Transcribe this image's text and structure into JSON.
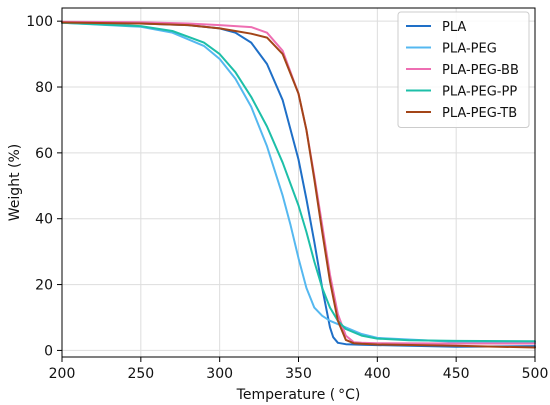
{
  "chart_data": {
    "type": "line",
    "title": "",
    "xlabel": "Temperature ( °C)",
    "ylabel": "Weight (%)",
    "xlim": [
      200,
      500
    ],
    "ylim": [
      -2,
      104
    ],
    "xticks": [
      200,
      250,
      300,
      350,
      400,
      450,
      500
    ],
    "yticks": [
      0,
      20,
      40,
      60,
      80,
      100
    ],
    "grid": true,
    "legend_position": "top-right",
    "series": [
      {
        "name": "PLA",
        "color": "#1f6fc7",
        "x": [
          200,
          250,
          280,
          300,
          310,
          320,
          330,
          340,
          350,
          355,
          360,
          365,
          370,
          372,
          375,
          380,
          390,
          400,
          450,
          500
        ],
        "y": [
          99.5,
          99.3,
          98.8,
          97.8,
          96.5,
          93.5,
          87,
          76,
          58,
          46,
          33,
          19,
          7,
          4,
          2.3,
          1.9,
          1.7,
          1.6,
          1.1,
          1.3
        ]
      },
      {
        "name": "PLA-PEG",
        "color": "#55b8f0",
        "x": [
          200,
          250,
          270,
          290,
          300,
          310,
          320,
          330,
          340,
          345,
          350,
          355,
          360,
          365,
          370,
          380,
          390,
          400,
          450,
          500
        ],
        "y": [
          99.5,
          98.3,
          96.5,
          92.5,
          88.5,
          82.5,
          74,
          62,
          47,
          38,
          28,
          19,
          13,
          10.5,
          9,
          7,
          5,
          3.8,
          2.6,
          2.4
        ]
      },
      {
        "name": "PLA-PEG-BB",
        "color": "#ee6eb2",
        "x": [
          200,
          250,
          280,
          300,
          320,
          330,
          340,
          350,
          355,
          360,
          365,
          370,
          375,
          380,
          385,
          390,
          400,
          450,
          500
        ],
        "y": [
          99.8,
          99.7,
          99.3,
          98.8,
          98.2,
          96.5,
          91,
          78,
          67,
          53,
          38,
          23,
          11,
          4.5,
          2.5,
          2.3,
          2.2,
          2.1,
          2.1
        ]
      },
      {
        "name": "PLA-PEG-PP",
        "color": "#1dbfa8",
        "x": [
          200,
          250,
          270,
          290,
          300,
          310,
          320,
          330,
          340,
          350,
          355,
          360,
          365,
          370,
          375,
          380,
          390,
          400,
          420,
          450,
          500
        ],
        "y": [
          99.5,
          98.5,
          97,
          93.5,
          90,
          84.5,
          77,
          68,
          57,
          44,
          36,
          27,
          19,
          13,
          9,
          6.5,
          4.5,
          3.6,
          3.1,
          2.9,
          2.8
        ]
      },
      {
        "name": "PLA-PEG-TB",
        "color": "#a34518",
        "x": [
          200,
          250,
          280,
          300,
          310,
          320,
          330,
          340,
          350,
          355,
          360,
          365,
          370,
          375,
          380,
          385,
          390,
          400,
          450,
          500
        ],
        "y": [
          99.6,
          99.3,
          98.8,
          97.8,
          97,
          96.2,
          95,
          90,
          78,
          67,
          52,
          36,
          21,
          9,
          3.2,
          2.2,
          2.0,
          1.8,
          1.4,
          0.9
        ]
      }
    ]
  }
}
